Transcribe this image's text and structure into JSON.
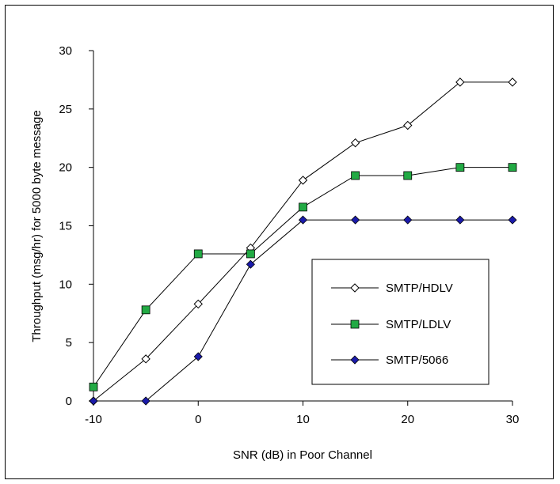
{
  "chart_data": {
    "type": "line",
    "title": "",
    "xlabel": "SNR (dB) in Poor Channel",
    "ylabel": "Throughput (msg/hr) for 5000 byte message",
    "xlim": [
      -10,
      30
    ],
    "ylim": [
      0,
      30
    ],
    "xticks": [
      -10,
      0,
      10,
      20,
      30
    ],
    "yticks": [
      0,
      5,
      10,
      15,
      20,
      25,
      30
    ],
    "grid": false,
    "legend_position": "bottom-right",
    "series": [
      {
        "name": "SMTP/HDLV",
        "marker": "open-diamond",
        "color": "#000000",
        "x": [
          -10,
          -5,
          0,
          5,
          10,
          15,
          20,
          25,
          30
        ],
        "y": [
          0,
          3.6,
          8.3,
          13.1,
          18.9,
          22.1,
          23.6,
          27.3,
          27.3
        ]
      },
      {
        "name": "SMTP/LDLV",
        "marker": "green-square",
        "color": "#22aa44",
        "x": [
          -10,
          -5,
          0,
          5,
          10,
          15,
          20,
          25,
          30
        ],
        "y": [
          1.2,
          7.8,
          12.6,
          12.6,
          16.6,
          19.3,
          19.3,
          20.0,
          20.0
        ]
      },
      {
        "name": "SMTP/5066",
        "marker": "blue-diamond",
        "color": "#1a1aaa",
        "x": [
          -10,
          -5,
          0,
          5,
          10,
          15,
          20,
          25,
          30
        ],
        "y": [
          0,
          0,
          3.8,
          11.7,
          15.5,
          15.5,
          15.5,
          15.5,
          15.5
        ]
      }
    ]
  }
}
